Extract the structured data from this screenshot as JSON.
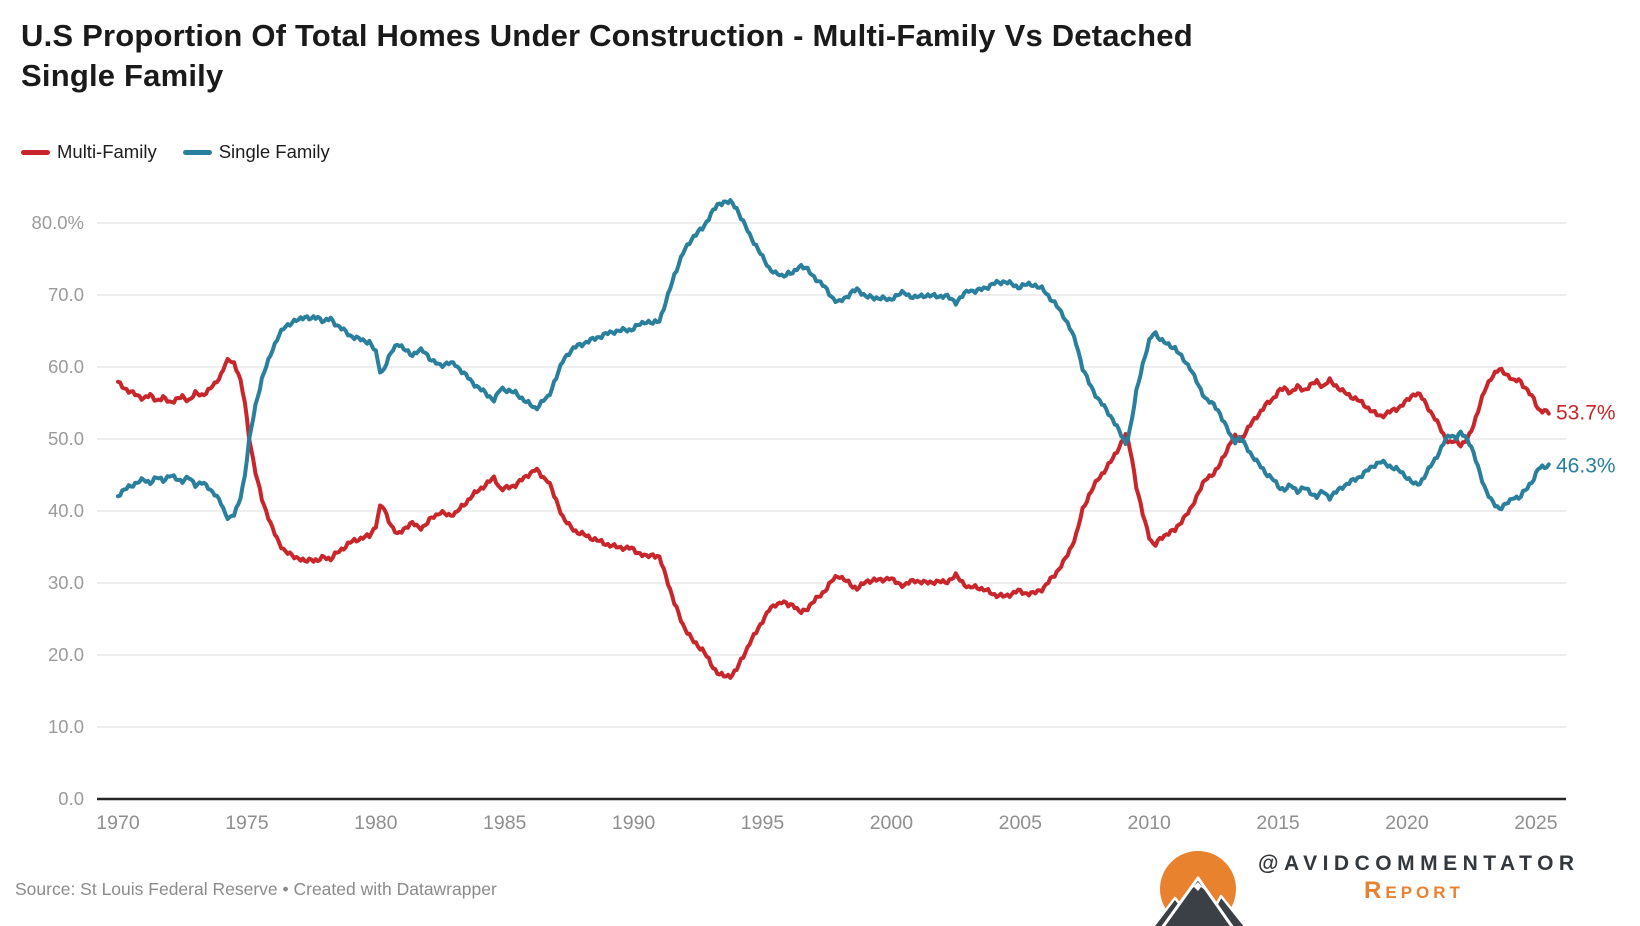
{
  "title": {
    "lines": [
      "U.S Proportion Of Total Homes Under Construction - Multi-Family Vs Detached",
      "Single Family"
    ]
  },
  "legend": {
    "items": [
      {
        "label": "Multi-Family",
        "color": "#c9262c"
      },
      {
        "label": "Single Family",
        "color": "#2a7f9d"
      }
    ]
  },
  "footer": {
    "source": "Source: St Louis Federal Reserve • Created with Datawrapper"
  },
  "branding": {
    "handle": "@AVIDCOMMENTATOR",
    "sub": "Report",
    "orange": "#e8822e",
    "dark": "#33383c"
  },
  "chart_data": {
    "type": "line",
    "title": "U.S Proportion Of Total Homes Under Construction - Multi-Family Vs Detached Single Family",
    "xlabel": "",
    "ylabel": "",
    "ylim": [
      0,
      84
    ],
    "xlim": [
      1970,
      2025.6
    ],
    "grid": "horizontal",
    "legend_position": "top-left",
    "x_ticks": [
      1970,
      1975,
      1980,
      1985,
      1990,
      1995,
      2000,
      2005,
      2010,
      2015,
      2020,
      2025
    ],
    "y_ticks": [
      {
        "value": 80,
        "label": "80.0%"
      },
      {
        "value": 70,
        "label": "70.0"
      },
      {
        "value": 60,
        "label": "60.0"
      },
      {
        "value": 50,
        "label": "50.0"
      },
      {
        "value": 40,
        "label": "40.0"
      },
      {
        "value": 30,
        "label": "30.0"
      },
      {
        "value": 20,
        "label": "20.0"
      },
      {
        "value": 10,
        "label": "10.0"
      },
      {
        "value": 0,
        "label": "0.0"
      }
    ],
    "series": [
      {
        "name": "Multi-Family",
        "color": "#c9262c",
        "end_label": "53.7%",
        "end_value": 53.7
      },
      {
        "name": "Single Family",
        "color": "#2a7f9d",
        "end_label": "46.3%",
        "end_value": 46.3
      }
    ],
    "points_format": [
      "year",
      "multi_family_pct",
      "single_family_pct"
    ],
    "points": [
      [
        1970.0,
        57.8,
        42.2
      ],
      [
        1970.25,
        57.1,
        42.9
      ],
      [
        1970.5,
        56.5,
        43.5
      ],
      [
        1970.75,
        56.0,
        44.0
      ],
      [
        1971.0,
        55.7,
        44.3
      ],
      [
        1971.25,
        56.0,
        44.0
      ],
      [
        1971.5,
        55.4,
        44.6
      ],
      [
        1971.75,
        55.7,
        44.3
      ],
      [
        1972.0,
        55.1,
        44.9
      ],
      [
        1972.25,
        55.5,
        44.5
      ],
      [
        1972.5,
        55.8,
        44.2
      ],
      [
        1972.75,
        55.4,
        44.6
      ],
      [
        1973.0,
        56.3,
        43.7
      ],
      [
        1973.25,
        56.1,
        43.9
      ],
      [
        1973.5,
        56.7,
        43.3
      ],
      [
        1973.75,
        57.6,
        42.4
      ],
      [
        1974.0,
        59.0,
        41.0
      ],
      [
        1974.15,
        60.3,
        39.7
      ],
      [
        1974.3,
        61.0,
        39.0
      ],
      [
        1974.5,
        60.6,
        39.4
      ],
      [
        1974.7,
        58.8,
        41.2
      ],
      [
        1974.9,
        55.5,
        44.5
      ],
      [
        1975.1,
        50.0,
        50.0
      ],
      [
        1975.35,
        45.0,
        55.0
      ],
      [
        1975.6,
        41.5,
        58.5
      ],
      [
        1975.8,
        39.5,
        60.5
      ],
      [
        1976.0,
        37.4,
        62.6
      ],
      [
        1976.25,
        35.6,
        64.4
      ],
      [
        1976.5,
        34.3,
        65.7
      ],
      [
        1976.75,
        33.8,
        66.2
      ],
      [
        1977.0,
        33.5,
        66.5
      ],
      [
        1977.25,
        32.9,
        67.1
      ],
      [
        1977.5,
        33.4,
        66.6
      ],
      [
        1977.75,
        33.0,
        67.0
      ],
      [
        1978.0,
        33.7,
        66.3
      ],
      [
        1978.25,
        33.3,
        66.7
      ],
      [
        1978.5,
        34.2,
        65.8
      ],
      [
        1978.75,
        34.9,
        65.1
      ],
      [
        1979.0,
        35.6,
        64.4
      ],
      [
        1979.25,
        36.0,
        64.0
      ],
      [
        1979.5,
        36.3,
        63.7
      ],
      [
        1979.75,
        36.5,
        63.5
      ],
      [
        1980.0,
        38.0,
        62.0
      ],
      [
        1980.2,
        41.0,
        59.0
      ],
      [
        1980.4,
        39.6,
        60.4
      ],
      [
        1980.6,
        38.0,
        62.0
      ],
      [
        1980.85,
        36.6,
        63.4
      ],
      [
        1981.1,
        37.6,
        62.4
      ],
      [
        1981.4,
        38.3,
        61.7
      ],
      [
        1981.7,
        37.7,
        62.3
      ],
      [
        1981.9,
        37.9,
        62.1
      ],
      [
        1982.2,
        39.2,
        60.8
      ],
      [
        1982.5,
        39.8,
        60.2
      ],
      [
        1982.8,
        39.4,
        60.6
      ],
      [
        1983.1,
        39.7,
        60.3
      ],
      [
        1983.4,
        40.8,
        59.2
      ],
      [
        1983.7,
        42.0,
        58.0
      ],
      [
        1984.0,
        42.9,
        57.1
      ],
      [
        1984.3,
        43.8,
        56.2
      ],
      [
        1984.6,
        44.6,
        55.4
      ],
      [
        1984.85,
        43.0,
        57.0
      ],
      [
        1985.1,
        43.2,
        56.8
      ],
      [
        1985.4,
        43.6,
        56.4
      ],
      [
        1985.7,
        44.4,
        55.6
      ],
      [
        1986.0,
        45.3,
        54.7
      ],
      [
        1986.2,
        45.8,
        54.2
      ],
      [
        1986.45,
        44.8,
        55.2
      ],
      [
        1986.7,
        44.2,
        55.8
      ],
      [
        1986.9,
        42.2,
        57.8
      ],
      [
        1987.1,
        40.6,
        59.4
      ],
      [
        1987.3,
        38.8,
        61.2
      ],
      [
        1987.55,
        37.8,
        62.2
      ],
      [
        1987.8,
        37.1,
        62.9
      ],
      [
        1988.0,
        36.8,
        63.2
      ],
      [
        1988.4,
        36.2,
        63.8
      ],
      [
        1988.8,
        35.6,
        64.4
      ],
      [
        1989.3,
        35.0,
        65.0
      ],
      [
        1989.9,
        34.8,
        65.2
      ],
      [
        1990.2,
        34.2,
        65.8
      ],
      [
        1990.5,
        33.6,
        66.4
      ],
      [
        1990.75,
        34.0,
        66.0
      ],
      [
        1991.0,
        33.5,
        66.5
      ],
      [
        1991.3,
        30.5,
        69.5
      ],
      [
        1991.6,
        27.0,
        73.0
      ],
      [
        1991.9,
        24.3,
        75.7
      ],
      [
        1992.3,
        21.9,
        78.1
      ],
      [
        1992.7,
        20.7,
        79.3
      ],
      [
        1993.0,
        18.7,
        81.3
      ],
      [
        1993.25,
        17.6,
        82.4
      ],
      [
        1993.5,
        17.0,
        83.0
      ],
      [
        1993.75,
        17.1,
        82.9
      ],
      [
        1994.0,
        18.0,
        82.0
      ],
      [
        1994.25,
        19.8,
        80.2
      ],
      [
        1994.5,
        21.7,
        78.3
      ],
      [
        1994.75,
        23.1,
        76.9
      ],
      [
        1995.0,
        24.8,
        75.2
      ],
      [
        1995.25,
        26.2,
        73.8
      ],
      [
        1995.5,
        27.0,
        73.0
      ],
      [
        1995.75,
        27.4,
        72.6
      ],
      [
        1996.0,
        26.9,
        73.1
      ],
      [
        1996.2,
        27.1,
        72.9
      ],
      [
        1996.45,
        25.8,
        74.2
      ],
      [
        1996.7,
        26.3,
        73.7
      ],
      [
        1996.9,
        27.2,
        72.8
      ],
      [
        1997.2,
        28.1,
        71.9
      ],
      [
        1997.45,
        29.1,
        70.9
      ],
      [
        1997.7,
        30.3,
        69.7
      ],
      [
        1997.95,
        31.1,
        68.9
      ],
      [
        1998.2,
        30.4,
        69.6
      ],
      [
        1998.5,
        29.5,
        70.5
      ],
      [
        1998.7,
        29.3,
        70.7
      ],
      [
        1999.0,
        30.1,
        69.9
      ],
      [
        1999.3,
        30.5,
        69.5
      ],
      [
        1999.6,
        30.3,
        69.7
      ],
      [
        1999.9,
        30.8,
        69.2
      ],
      [
        2000.2,
        30.0,
        70.0
      ],
      [
        2000.5,
        29.7,
        70.3
      ],
      [
        2000.9,
        30.4,
        69.6
      ],
      [
        2001.3,
        30.0,
        70.0
      ],
      [
        2001.7,
        30.2,
        69.8
      ],
      [
        2002.1,
        30.1,
        69.9
      ],
      [
        2002.5,
        31.0,
        69.0
      ],
      [
        2002.8,
        30.0,
        70.0
      ],
      [
        2003.0,
        29.3,
        70.7
      ],
      [
        2003.3,
        29.5,
        70.5
      ],
      [
        2003.7,
        28.9,
        71.1
      ],
      [
        2004.0,
        28.4,
        71.6
      ],
      [
        2004.4,
        28.1,
        71.9
      ],
      [
        2004.9,
        28.9,
        71.1
      ],
      [
        2005.2,
        28.6,
        71.4
      ],
      [
        2005.5,
        28.5,
        71.5
      ],
      [
        2005.9,
        29.3,
        70.7
      ],
      [
        2006.3,
        31.0,
        69.0
      ],
      [
        2006.7,
        33.0,
        67.0
      ],
      [
        2006.9,
        34.4,
        65.6
      ],
      [
        2007.2,
        37.0,
        63.0
      ],
      [
        2007.4,
        40.0,
        60.0
      ],
      [
        2007.7,
        42.5,
        57.5
      ],
      [
        2008.0,
        44.3,
        55.7
      ],
      [
        2008.3,
        45.8,
        54.2
      ],
      [
        2008.6,
        47.3,
        52.7
      ],
      [
        2008.9,
        49.4,
        50.6
      ],
      [
        2009.1,
        50.7,
        49.3
      ],
      [
        2009.3,
        48.0,
        52.0
      ],
      [
        2009.5,
        43.5,
        56.5
      ],
      [
        2009.75,
        39.5,
        60.5
      ],
      [
        2010.0,
        36.5,
        63.5
      ],
      [
        2010.2,
        35.1,
        64.9
      ],
      [
        2010.45,
        36.2,
        63.8
      ],
      [
        2010.7,
        36.9,
        63.1
      ],
      [
        2011.0,
        37.3,
        62.7
      ],
      [
        2011.3,
        38.9,
        61.1
      ],
      [
        2011.6,
        40.1,
        59.9
      ],
      [
        2011.9,
        42.6,
        57.4
      ],
      [
        2012.2,
        44.4,
        55.6
      ],
      [
        2012.5,
        45.3,
        54.7
      ],
      [
        2012.7,
        46.1,
        53.9
      ],
      [
        2013.0,
        48.4,
        51.6
      ],
      [
        2013.2,
        49.9,
        50.1
      ],
      [
        2013.35,
        50.3,
        49.7
      ],
      [
        2013.5,
        49.8,
        50.2
      ],
      [
        2013.65,
        50.5,
        49.5
      ],
      [
        2013.9,
        51.8,
        48.2
      ],
      [
        2014.2,
        53.3,
        46.7
      ],
      [
        2014.5,
        54.6,
        45.4
      ],
      [
        2014.8,
        55.6,
        44.4
      ],
      [
        2015.0,
        56.6,
        43.4
      ],
      [
        2015.25,
        57.0,
        43.0
      ],
      [
        2015.5,
        56.5,
        43.5
      ],
      [
        2015.75,
        57.2,
        42.8
      ],
      [
        2016.0,
        56.8,
        43.2
      ],
      [
        2016.25,
        57.4,
        42.6
      ],
      [
        2016.5,
        58.0,
        42.0
      ],
      [
        2016.75,
        57.3,
        42.7
      ],
      [
        2017.0,
        58.1,
        41.9
      ],
      [
        2017.25,
        57.4,
        42.6
      ],
      [
        2017.5,
        56.6,
        43.4
      ],
      [
        2017.75,
        56.1,
        43.9
      ],
      [
        2018.0,
        55.6,
        44.4
      ],
      [
        2018.25,
        55.0,
        45.0
      ],
      [
        2018.5,
        54.3,
        45.7
      ],
      [
        2018.8,
        53.4,
        46.6
      ],
      [
        2019.0,
        53.2,
        46.8
      ],
      [
        2019.3,
        53.7,
        46.3
      ],
      [
        2019.6,
        54.2,
        45.8
      ],
      [
        2019.8,
        54.7,
        45.3
      ],
      [
        2020.0,
        55.3,
        44.7
      ],
      [
        2020.3,
        56.4,
        43.6
      ],
      [
        2020.5,
        56.1,
        43.9
      ],
      [
        2020.75,
        54.8,
        45.2
      ],
      [
        2021.0,
        53.3,
        46.7
      ],
      [
        2021.25,
        51.8,
        48.2
      ],
      [
        2021.5,
        50.1,
        49.9
      ],
      [
        2021.7,
        49.3,
        50.7
      ],
      [
        2021.9,
        49.9,
        50.1
      ],
      [
        2022.05,
        49.2,
        50.8
      ],
      [
        2022.25,
        49.6,
        50.4
      ],
      [
        2022.45,
        50.6,
        49.4
      ],
      [
        2022.65,
        52.8,
        47.2
      ],
      [
        2022.85,
        55.0,
        45.0
      ],
      [
        2023.05,
        57.0,
        43.0
      ],
      [
        2023.25,
        58.5,
        41.5
      ],
      [
        2023.45,
        59.3,
        40.7
      ],
      [
        2023.6,
        59.6,
        40.4
      ],
      [
        2023.8,
        59.2,
        40.8
      ],
      [
        2024.0,
        58.6,
        41.4
      ],
      [
        2024.15,
        57.9,
        42.1
      ],
      [
        2024.35,
        58.3,
        41.7
      ],
      [
        2024.55,
        57.3,
        42.7
      ],
      [
        2024.75,
        56.3,
        43.7
      ],
      [
        2024.95,
        55.4,
        44.6
      ],
      [
        2025.1,
        54.1,
        45.9
      ],
      [
        2025.3,
        53.8,
        46.2
      ],
      [
        2025.5,
        53.7,
        46.3
      ]
    ]
  }
}
